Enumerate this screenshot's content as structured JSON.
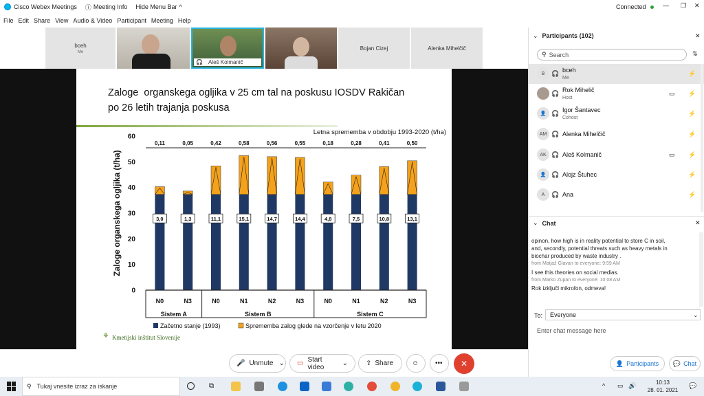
{
  "window": {
    "app_title": "Cisco Webex Meetings",
    "meeting_info": "Meeting Info",
    "hide_menu_bar": "Hide Menu Bar",
    "status": "Connected"
  },
  "menu": [
    "File",
    "Edit",
    "Share",
    "View",
    "Audio & Video",
    "Participant",
    "Meeting",
    "Help"
  ],
  "video_strip": {
    "self_name": "bceh",
    "self_sub": "Me",
    "active_speaker": "Aleš Kolmanič",
    "tile_names": [
      "Bojan Cizej",
      "Alenka Mihelčič"
    ]
  },
  "slide": {
    "title_line1": "Zaloge  organskega ogljika v 25 cm tal na poskusu IOSDV Rakičan",
    "title_line2": "po 26 letih trajanja poskusa",
    "logo_text": "Kmetijski inštitut Slovenije"
  },
  "chart_data": {
    "type": "bar",
    "ylabel": "Zaloge organskega ogljika (t/ha)",
    "ylim": [
      0,
      60
    ],
    "yticks": [
      0,
      10,
      20,
      30,
      40,
      50,
      60
    ],
    "annotation_header": "Letna sprememba v obdobju 1993-2020 (t/ha)",
    "categories": [
      "N0",
      "N3",
      "N0",
      "N1",
      "N2",
      "N3",
      "N0",
      "N1",
      "N2",
      "N3"
    ],
    "groups": [
      {
        "name": "Sistem A",
        "span": [
          0,
          1
        ]
      },
      {
        "name": "Sistem B",
        "span": [
          2,
          5
        ]
      },
      {
        "name": "Sistem C",
        "span": [
          6,
          9
        ]
      }
    ],
    "annual_change_labels": [
      "0,11",
      "0,05",
      "0,42",
      "0,58",
      "0,56",
      "0,55",
      "0,18",
      "0,28",
      "0,41",
      "0,50"
    ],
    "change_labels": [
      "3,0",
      "1,3",
      "11,1",
      "15,1",
      "14,7",
      "14,4",
      "4,8",
      "7,5",
      "10,8",
      "13,1"
    ],
    "series": [
      {
        "name": "Začetno stanje (1993)",
        "values": [
          37.3,
          37.3,
          37.3,
          37.3,
          37.3,
          37.3,
          37.3,
          37.3,
          37.3,
          37.3
        ]
      },
      {
        "name": "Sprememba zalog glede na vzorčenje v letu 2020",
        "values": [
          3.0,
          1.3,
          11.1,
          15.1,
          14.7,
          14.4,
          4.8,
          7.5,
          10.8,
          13.1
        ]
      }
    ],
    "colors": {
      "base": "#1f3864",
      "change": "#f4a21c"
    }
  },
  "controls": {
    "unmute": "Unmute",
    "start_video": "Start video",
    "share": "Share"
  },
  "participants_panel": {
    "title": "Participants (102)",
    "search_placeholder": "Search",
    "list": [
      {
        "initials": "B",
        "name": "bceh",
        "role": "Me"
      },
      {
        "initials": "",
        "name": "Rok Mihelič",
        "role": "Host"
      },
      {
        "initials": "",
        "name": "Igor Šantavec",
        "role": "Cohost"
      },
      {
        "initials": "AM",
        "name": "Alenka Mihelčič",
        "role": ""
      },
      {
        "initials": "AK",
        "name": "Aleš Kolmanič",
        "role": ""
      },
      {
        "initials": "",
        "name": "Alojz Štuhec",
        "role": ""
      },
      {
        "initials": "A",
        "name": "Ana",
        "role": ""
      }
    ]
  },
  "chat_panel": {
    "title": "Chat",
    "messages_text": [
      "opinon, how high is in reality potential to store C in soil,",
      "and, secondly, potential threats such as heavy metals in",
      "biochar produced by waste industry ."
    ],
    "meta1": "from Matjaž Glavan to everyone:   9:59 AM",
    "msg2": "I see this theories on social medias.",
    "meta2": "from Marko Zupan to everyone:   10:08 AM",
    "msg3": "Rok izključi mikrofon, odmeva!",
    "to_label": "To:",
    "to_value": "Everyone",
    "input_placeholder": "Enter chat message here",
    "tab_participants": "Participants",
    "tab_chat": "Chat"
  },
  "taskbar": {
    "search_placeholder": "Tukaj vnesite izraz za iskanje",
    "time": "10:13",
    "date": "28. 01. 2021"
  }
}
